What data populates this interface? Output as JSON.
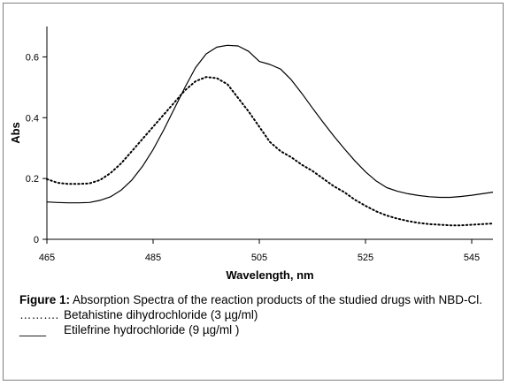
{
  "chart_data": {
    "type": "line",
    "xlabel": "Wavelength, nm",
    "ylabel": "Abs",
    "xlim": [
      465,
      549
    ],
    "ylim": [
      0,
      0.7
    ],
    "xticks": [
      465,
      485,
      505,
      525,
      545
    ],
    "yticks": [
      0,
      0.2,
      0.4,
      0.6
    ],
    "grid": false,
    "series": [
      {
        "name": "Betahistine dihydrochloride (3 µg/ml)",
        "style": "dotted",
        "color": "#000000",
        "x": [
          465,
          467,
          469,
          471,
          473,
          475,
          477,
          479,
          481,
          483,
          485,
          487,
          489,
          491,
          493,
          495,
          497,
          499,
          501,
          503,
          505,
          507,
          509,
          511,
          513,
          515,
          517,
          519,
          521,
          523,
          525,
          527,
          529,
          531,
          533,
          535,
          537,
          539,
          541,
          543,
          545,
          547,
          549
        ],
        "y": [
          0.198,
          0.186,
          0.182,
          0.182,
          0.184,
          0.195,
          0.218,
          0.25,
          0.29,
          0.33,
          0.37,
          0.41,
          0.45,
          0.49,
          0.52,
          0.534,
          0.53,
          0.51,
          0.465,
          0.42,
          0.37,
          0.32,
          0.29,
          0.27,
          0.245,
          0.225,
          0.2,
          0.175,
          0.155,
          0.13,
          0.11,
          0.092,
          0.078,
          0.068,
          0.06,
          0.054,
          0.05,
          0.048,
          0.046,
          0.046,
          0.048,
          0.05,
          0.052
        ]
      },
      {
        "name": "Etilefrine hydrochloride (9 µg/ml )",
        "style": "solid",
        "color": "#000000",
        "x": [
          465,
          467,
          469,
          471,
          473,
          475,
          477,
          479,
          481,
          483,
          485,
          487,
          489,
          491,
          493,
          495,
          497,
          499,
          501,
          503,
          505,
          507,
          509,
          511,
          513,
          515,
          517,
          519,
          521,
          523,
          525,
          527,
          529,
          531,
          533,
          535,
          537,
          539,
          541,
          543,
          545,
          547,
          549
        ],
        "y": [
          0.123,
          0.121,
          0.12,
          0.12,
          0.121,
          0.128,
          0.14,
          0.162,
          0.195,
          0.24,
          0.295,
          0.36,
          0.43,
          0.5,
          0.565,
          0.61,
          0.632,
          0.638,
          0.636,
          0.618,
          0.585,
          0.575,
          0.56,
          0.525,
          0.48,
          0.432,
          0.385,
          0.34,
          0.298,
          0.258,
          0.222,
          0.192,
          0.17,
          0.158,
          0.15,
          0.144,
          0.14,
          0.138,
          0.138,
          0.141,
          0.145,
          0.15,
          0.155
        ]
      }
    ]
  },
  "caption": {
    "figure_label": "Figure 1:",
    "text": " Absorption Spectra of the reaction products of the studied drugs with NBD-Cl.",
    "legend": [
      {
        "sample": "……….",
        "label": "Betahistine dihydrochloride (3 µg/ml)"
      },
      {
        "sample": "____",
        "label": "Etilefrine hydrochloride (9 µg/ml )"
      }
    ]
  }
}
